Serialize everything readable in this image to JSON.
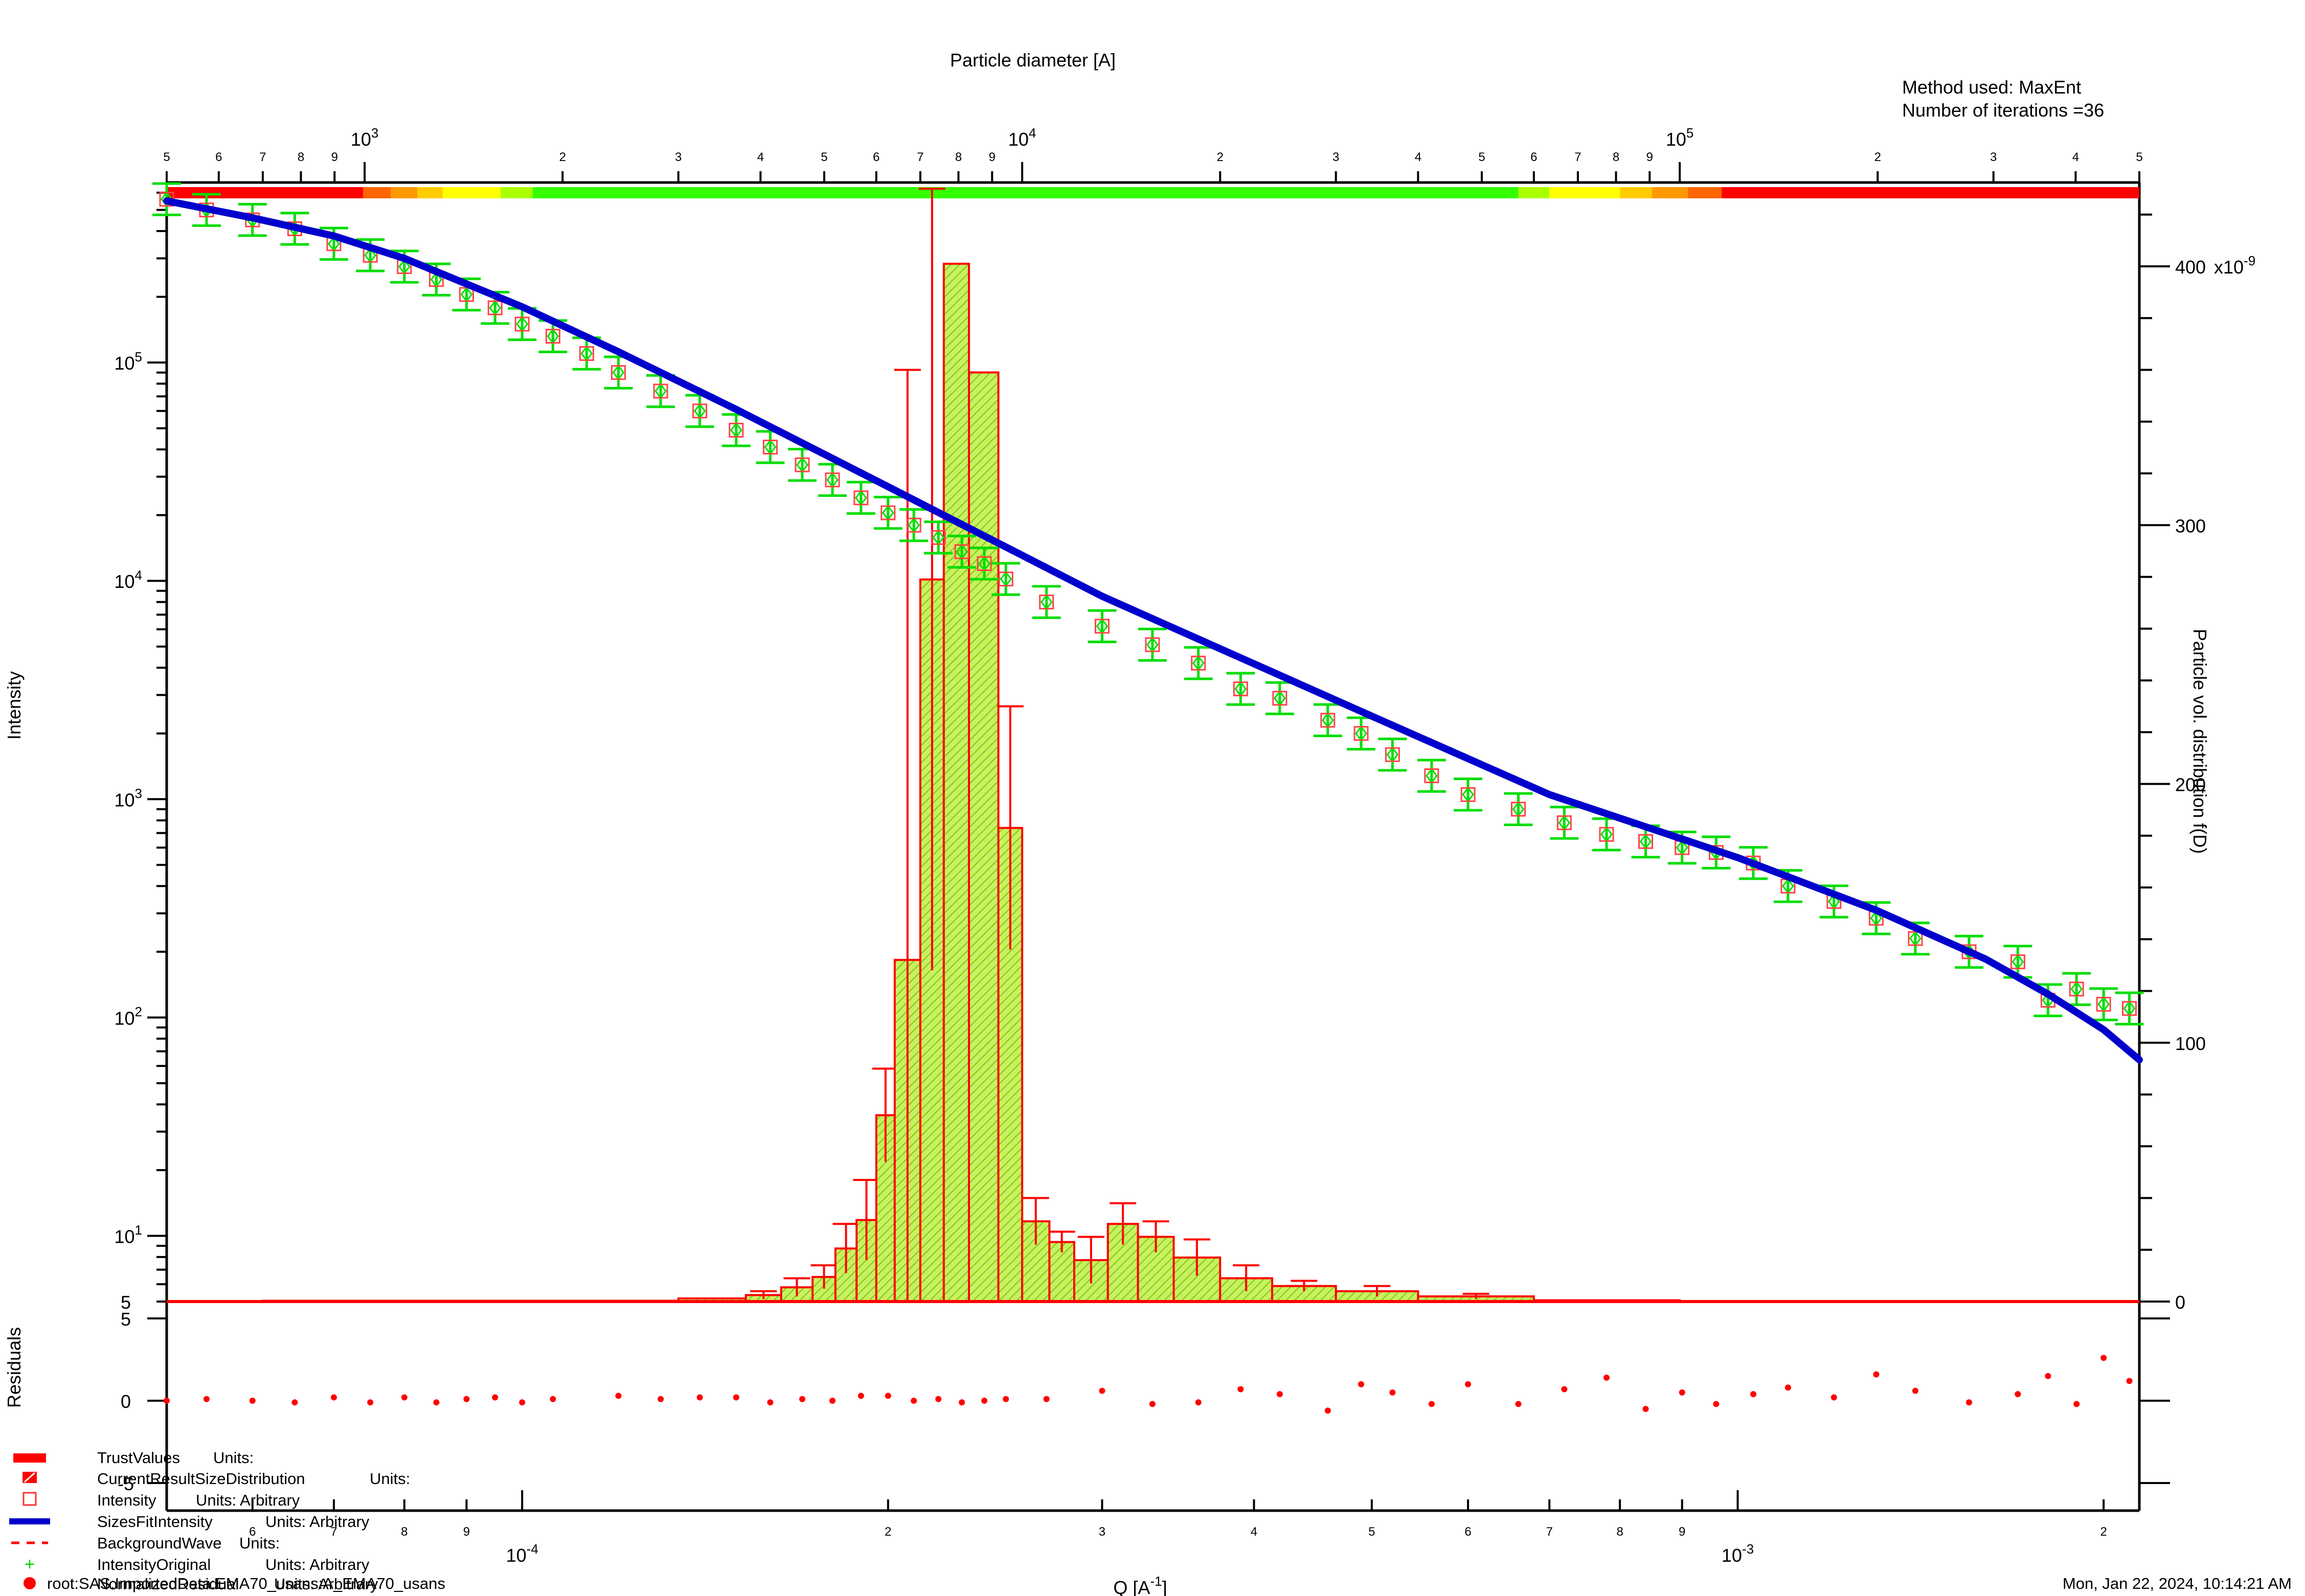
{
  "page": {
    "method_line": "Method used: MaxEnt",
    "iterations_line": "Number of iterations =36",
    "footer_path": "root:SAS:ImportedData:EMA70_usans:A_EMA70_usans",
    "footer_date": "Mon, Jan 22, 2024, 10:14:21 AM"
  },
  "chart_data": {
    "type": "line",
    "title": "",
    "top_axis": {
      "label": "Particle diameter [A]",
      "scale": "log",
      "range": [
        500,
        500000
      ],
      "decades": [
        {
          "value": 1000,
          "mantissa": "10",
          "exp": "3"
        },
        {
          "value": 10000,
          "mantissa": "10",
          "exp": "4"
        },
        {
          "value": 100000,
          "mantissa": "10",
          "exp": "5"
        }
      ],
      "minor_labels": [
        "5",
        "6",
        "7",
        "8",
        "9",
        "2",
        "3",
        "4",
        "5",
        "6",
        "7",
        "8",
        "9",
        "2",
        "3",
        "4",
        "5",
        "6",
        "7",
        "8",
        "9",
        "2",
        "3",
        "4",
        "5"
      ]
    },
    "bottom_axis": {
      "label": "Q [A",
      "label_exp": "-1",
      "label_close": "]",
      "scale": "log",
      "range": [
        5.1e-05,
        0.00214
      ],
      "decades": [
        {
          "value": 0.0001,
          "mantissa": "10",
          "exp": "-4"
        },
        {
          "value": 0.001,
          "mantissa": "10",
          "exp": "-3"
        }
      ],
      "minor_labels": [
        "6",
        "7",
        "8",
        "9",
        "2",
        "3",
        "4",
        "5",
        "6",
        "7",
        "8",
        "9",
        "2"
      ]
    },
    "left_axis": {
      "label": "Intensity",
      "scale": "log",
      "range": [
        5,
        650000
      ],
      "major_labels": [
        {
          "value": 10,
          "mantissa": "10",
          "exp": "1"
        },
        {
          "value": 100,
          "mantissa": "10",
          "exp": "2"
        },
        {
          "value": 1000,
          "mantissa": "10",
          "exp": "3"
        },
        {
          "value": 10000,
          "mantissa": "10",
          "exp": "4"
        },
        {
          "value": 100000,
          "mantissa": "10",
          "exp": "5"
        }
      ],
      "bottom_label": "5"
    },
    "right_axis": {
      "label": "Particle vol. distribution f(D)",
      "range": [
        0,
        400
      ],
      "unit_suffix": "x10",
      "unit_exp": "-9",
      "ticks": [
        "0",
        "100",
        "200",
        "300",
        "400"
      ]
    },
    "residual_axis": {
      "label": "Residuals",
      "range": [
        -5,
        5
      ],
      "ticks": [
        "5",
        "0",
        "-5"
      ]
    },
    "legend": [
      {
        "name": "TrustValues",
        "units": "Units:",
        "symbol": "thick-red-bar",
        "color": "#ff0000"
      },
      {
        "name": "CurrentResultSizeDistribution",
        "units": "Units:",
        "symbol": "hatched-box",
        "color": "#ff0000"
      },
      {
        "name": "Intensity",
        "units": "Units:  Arbitrary",
        "symbol": "open-square",
        "color": "#ff3333"
      },
      {
        "name": "SizesFitIntensity",
        "units": "Units:  Arbitrary",
        "symbol": "thick-blue-line",
        "color": "#0000cc"
      },
      {
        "name": "BackgroundWave",
        "units": "Units:",
        "symbol": "dashed-red",
        "color": "#ff0000"
      },
      {
        "name": "IntensityOriginal",
        "units": "Units:  Arbitrary",
        "symbol": "plus",
        "color": "#00cc00"
      },
      {
        "name": "NormalizedResidual",
        "units": "Units:  Arbitrary",
        "symbol": "filled-dot",
        "color": "#ff0000"
      }
    ],
    "colors": {
      "fit": "#0000cc",
      "data_errorbar": "#00dd00",
      "intensity_marker": "#ff4444",
      "distribution": "#ff0000",
      "distribution_fill": "#c8f064",
      "residual": "#ff0000",
      "background": "#ff0000"
    },
    "trust_band": [
      {
        "q_from": 5.1e-05,
        "q_to": 7.4e-05,
        "color": "#ff0000"
      },
      {
        "q_from": 7.4e-05,
        "q_to": 7.8e-05,
        "color": "#ff6600"
      },
      {
        "q_from": 7.8e-05,
        "q_to": 8.2e-05,
        "color": "#ff9900"
      },
      {
        "q_from": 8.2e-05,
        "q_to": 8.6e-05,
        "color": "#ffcc00"
      },
      {
        "q_from": 8.6e-05,
        "q_to": 9.6e-05,
        "color": "#ffff00"
      },
      {
        "q_from": 9.6e-05,
        "q_to": 0.000102,
        "color": "#aaff00"
      },
      {
        "q_from": 0.000102,
        "q_to": 0.00066,
        "color": "#33ff00"
      },
      {
        "q_from": 0.00066,
        "q_to": 0.0007,
        "color": "#aaff00"
      },
      {
        "q_from": 0.0007,
        "q_to": 0.0008,
        "color": "#ffff00"
      },
      {
        "q_from": 0.0008,
        "q_to": 0.00085,
        "color": "#ffcc00"
      },
      {
        "q_from": 0.00085,
        "q_to": 0.00091,
        "color": "#ff9900"
      },
      {
        "q_from": 0.00091,
        "q_to": 0.00097,
        "color": "#ff6600"
      },
      {
        "q_from": 0.00097,
        "q_to": 0.00214,
        "color": "#ff0000"
      }
    ],
    "fit_curve": {
      "q": [
        5.1e-05,
        6e-05,
        7e-05,
        8e-05,
        0.0001,
        0.00012,
        0.00015,
        0.0002,
        0.0003,
        0.0005,
        0.0007,
        0.001,
        0.0013,
        0.0016,
        0.0018,
        0.002,
        0.00214
      ],
      "intensity": [
        550000,
        460000,
        380000,
        300000,
        180000,
        112000,
        61000,
        27000,
        8500,
        2400,
        1050,
        540,
        310,
        185,
        128,
        88,
        64
      ]
    },
    "data_points": {
      "q": [
        5.1e-05,
        5.5e-05,
        6e-05,
        6.5e-05,
        7e-05,
        7.5e-05,
        8e-05,
        8.5e-05,
        9e-05,
        9.5e-05,
        0.0001,
        0.000106,
        0.000113,
        0.00012,
        0.00013,
        0.00014,
        0.00015,
        0.00016,
        0.00017,
        0.00018,
        0.00019,
        0.0002,
        0.00021,
        0.00022,
        0.00023,
        0.00024,
        0.00025,
        0.00027,
        0.0003,
        0.00033,
        0.00036,
        0.00039,
        0.00042,
        0.00046,
        0.00049,
        0.00052,
        0.00056,
        0.0006,
        0.00066,
        0.00072,
        0.00078,
        0.00084,
        0.0009,
        0.00096,
        0.00103,
        0.0011,
        0.0012,
        0.0013,
        0.0014,
        0.00155,
        0.0017,
        0.0018,
        0.0019,
        0.002,
        0.0021
      ],
      "intensity": [
        560000,
        500000,
        450000,
        410000,
        350000,
        310000,
        275000,
        240000,
        205000,
        178000,
        150000,
        132000,
        110000,
        90000,
        74000,
        60000,
        49000,
        41000,
        34000,
        29000,
        24000,
        20500,
        18000,
        15800,
        13600,
        12000,
        10200,
        8000,
        6200,
        5100,
        4200,
        3200,
        2900,
        2300,
        2000,
        1600,
        1280,
        1050,
        900,
        780,
        690,
        640,
        600,
        570,
        510,
        400,
        340,
        285,
        230,
        200,
        180,
        120,
        135,
        115,
        110
      ]
    },
    "size_distribution": {
      "diameter_edges": [
        700,
        3000,
        3800,
        4300,
        4800,
        5200,
        5600,
        6000,
        6400,
        7000,
        7600,
        8300,
        9200,
        10000,
        11000,
        12000,
        13500,
        15000,
        17000,
        20000,
        24000,
        30000,
        40000,
        60000,
        100000,
        500000
      ],
      "values": [
        0.3,
        1.2,
        2.5,
        5.5,
        9.5,
        20.5,
        31.5,
        72,
        132,
        279,
        401,
        359,
        183,
        31,
        23,
        16,
        30,
        25,
        17,
        9,
        6,
        4,
        2,
        0.5,
        0
      ],
      "error_upper": [
        0,
        1,
        4,
        9,
        14,
        30,
        47,
        90,
        360,
        430,
        373,
        283,
        230,
        40,
        27,
        25,
        38,
        31,
        24,
        14,
        8,
        6,
        3,
        1,
        0
      ]
    },
    "residuals": {
      "q": [
        5.1e-05,
        5.5e-05,
        6e-05,
        6.5e-05,
        7e-05,
        7.5e-05,
        8e-05,
        8.5e-05,
        9e-05,
        9.5e-05,
        0.0001,
        0.000106,
        0.00012,
        0.00013,
        0.00014,
        0.00015,
        0.00016,
        0.00017,
        0.00018,
        0.00019,
        0.0002,
        0.00021,
        0.00022,
        0.00023,
        0.00024,
        0.00025,
        0.00027,
        0.0003,
        0.00033,
        0.00036,
        0.00039,
        0.00042,
        0.00046,
        0.00049,
        0.00052,
        0.00056,
        0.0006,
        0.00066,
        0.00072,
        0.00078,
        0.00084,
        0.0009,
        0.00096,
        0.00103,
        0.0011,
        0.0012,
        0.0013,
        0.0014,
        0.00155,
        0.0017,
        0.0018,
        0.0019,
        0.002,
        0.0021
      ],
      "values": [
        0,
        0.1,
        0,
        -0.1,
        0.2,
        -0.1,
        0.2,
        -0.1,
        0.1,
        0.2,
        -0.1,
        0.1,
        0.3,
        0.1,
        0.2,
        0.2,
        -0.1,
        0.1,
        0,
        0.3,
        0.3,
        0,
        0.1,
        -0.1,
        0,
        0.1,
        0.1,
        0.6,
        -0.2,
        -0.1,
        0.7,
        0.4,
        -0.6,
        1.0,
        0.5,
        -0.2,
        1.0,
        -0.2,
        0.7,
        1.4,
        -0.5,
        0.5,
        -0.2,
        0.4,
        0.8,
        0.2,
        1.6,
        0.6,
        -0.1,
        0.4,
        1.5,
        -0.2,
        2.6,
        1.2
      ]
    }
  }
}
